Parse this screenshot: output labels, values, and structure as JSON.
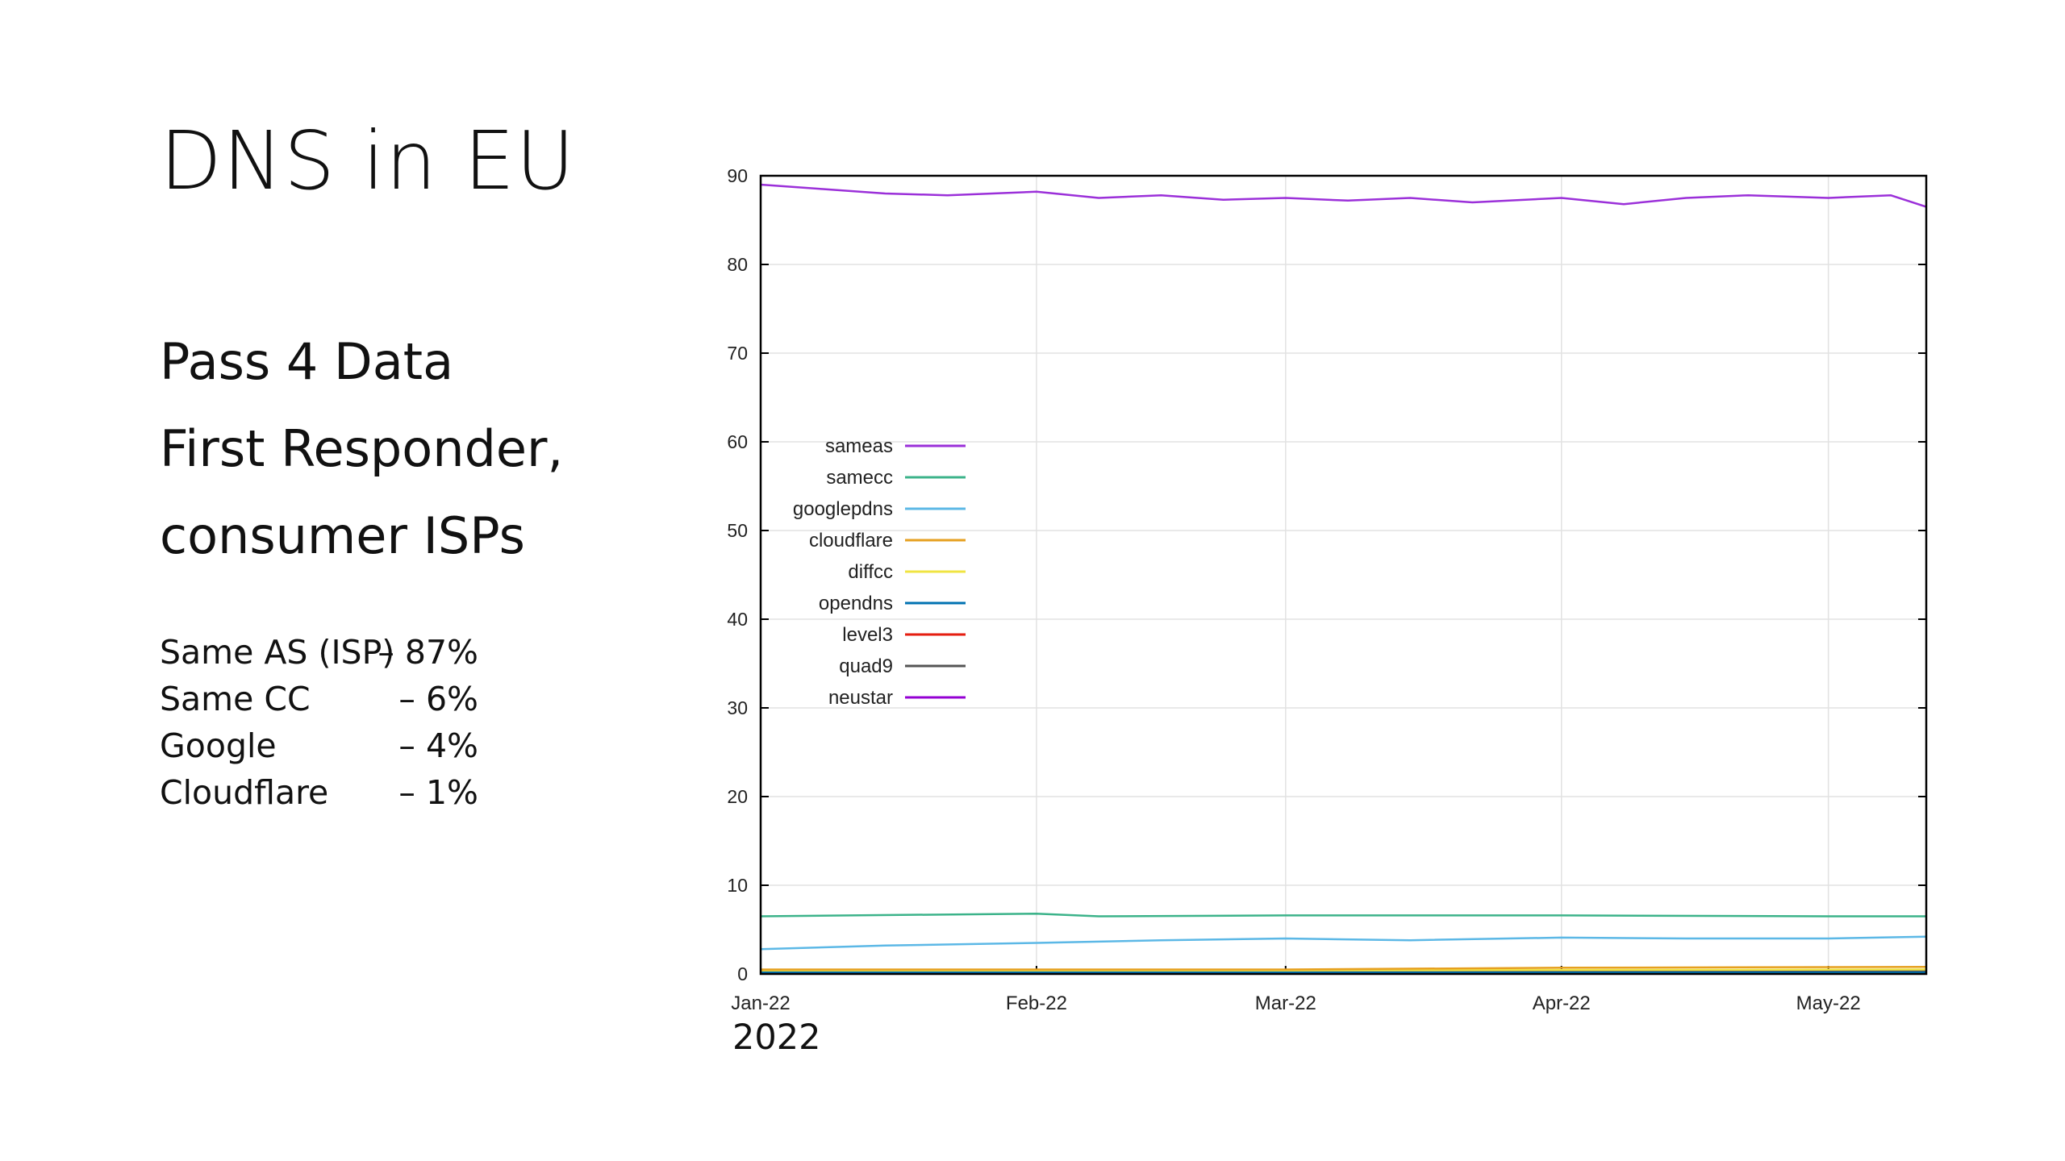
{
  "slide": {
    "title": "DNS in EU",
    "subtitle_lines": [
      "Pass 4 Data",
      "First Responder,",
      "consumer ISPs"
    ],
    "stats": [
      {
        "label": "Same AS (ISP)",
        "value": "– 87%"
      },
      {
        "label": "Same CC",
        "value": "–   6%"
      },
      {
        "label": "Google",
        "value": "–   4%"
      },
      {
        "label": "Cloudflare",
        "value": "– 1%"
      }
    ],
    "year_label": "2022"
  },
  "chart_data": {
    "type": "line",
    "title": "",
    "xlabel": "",
    "ylabel": "",
    "ylim": [
      0,
      90
    ],
    "yticks": [
      0,
      10,
      20,
      30,
      40,
      50,
      60,
      70,
      80,
      90
    ],
    "x_start": "2022-01-01",
    "x_end": "2022-05-12",
    "xticks": [
      {
        "label": "Jan-22",
        "date": "2022-01-01"
      },
      {
        "label": "Feb-22",
        "date": "2022-02-01"
      },
      {
        "label": "Mar-22",
        "date": "2022-03-01"
      },
      {
        "label": "Apr-22",
        "date": "2022-04-01"
      },
      {
        "label": "May-22",
        "date": "2022-05-01"
      }
    ],
    "grid": true,
    "legend_position": "center-left",
    "series": [
      {
        "name": "sameas",
        "color": "#9b30d9",
        "points": [
          [
            "2022-01-01",
            89
          ],
          [
            "2022-01-08",
            88.5
          ],
          [
            "2022-01-15",
            88
          ],
          [
            "2022-01-22",
            87.8
          ],
          [
            "2022-02-01",
            88.2
          ],
          [
            "2022-02-08",
            87.5
          ],
          [
            "2022-02-15",
            87.8
          ],
          [
            "2022-02-22",
            87.3
          ],
          [
            "2022-03-01",
            87.5
          ],
          [
            "2022-03-08",
            87.2
          ],
          [
            "2022-03-15",
            87.5
          ],
          [
            "2022-03-22",
            87
          ],
          [
            "2022-04-01",
            87.5
          ],
          [
            "2022-04-08",
            86.8
          ],
          [
            "2022-04-15",
            87.5
          ],
          [
            "2022-04-22",
            87.8
          ],
          [
            "2022-05-01",
            87.5
          ],
          [
            "2022-05-08",
            87.8
          ],
          [
            "2022-05-12",
            86.5
          ]
        ]
      },
      {
        "name": "samecc",
        "color": "#3cb38a",
        "points": [
          [
            "2022-01-01",
            6.5
          ],
          [
            "2022-02-01",
            6.8
          ],
          [
            "2022-02-08",
            6.5
          ],
          [
            "2022-03-01",
            6.6
          ],
          [
            "2022-04-01",
            6.6
          ],
          [
            "2022-05-01",
            6.5
          ],
          [
            "2022-05-12",
            6.5
          ]
        ]
      },
      {
        "name": "googlepdns",
        "color": "#5cb8e6",
        "points": [
          [
            "2022-01-01",
            2.8
          ],
          [
            "2022-01-15",
            3.2
          ],
          [
            "2022-02-01",
            3.5
          ],
          [
            "2022-02-15",
            3.8
          ],
          [
            "2022-03-01",
            4
          ],
          [
            "2022-03-15",
            3.8
          ],
          [
            "2022-04-01",
            4.1
          ],
          [
            "2022-04-15",
            4
          ],
          [
            "2022-05-01",
            4
          ],
          [
            "2022-05-12",
            4.2
          ]
        ]
      },
      {
        "name": "cloudflare",
        "color": "#e6a020",
        "points": [
          [
            "2022-01-01",
            0.5
          ],
          [
            "2022-03-01",
            0.5
          ],
          [
            "2022-04-01",
            0.7
          ],
          [
            "2022-05-12",
            0.8
          ]
        ]
      },
      {
        "name": "diffcc",
        "color": "#f0e442",
        "points": [
          [
            "2022-01-01",
            0.4
          ],
          [
            "2022-03-01",
            0.4
          ],
          [
            "2022-05-12",
            0.5
          ]
        ]
      },
      {
        "name": "opendns",
        "color": "#0072b2",
        "points": [
          [
            "2022-01-01",
            0.15
          ],
          [
            "2022-05-12",
            0.15
          ]
        ]
      },
      {
        "name": "level3",
        "color": "#e51e10",
        "points": [
          [
            "2022-01-01",
            0.1
          ],
          [
            "2022-05-12",
            0.1
          ]
        ]
      },
      {
        "name": "quad9",
        "color": "#555555",
        "points": [
          [
            "2022-01-01",
            0.2
          ],
          [
            "2022-03-01",
            0.3
          ],
          [
            "2022-05-12",
            0.3
          ]
        ]
      },
      {
        "name": "neustar",
        "color": "#9400d3",
        "points": [
          [
            "2022-01-01",
            0.05
          ],
          [
            "2022-05-12",
            0.05
          ]
        ]
      }
    ]
  }
}
